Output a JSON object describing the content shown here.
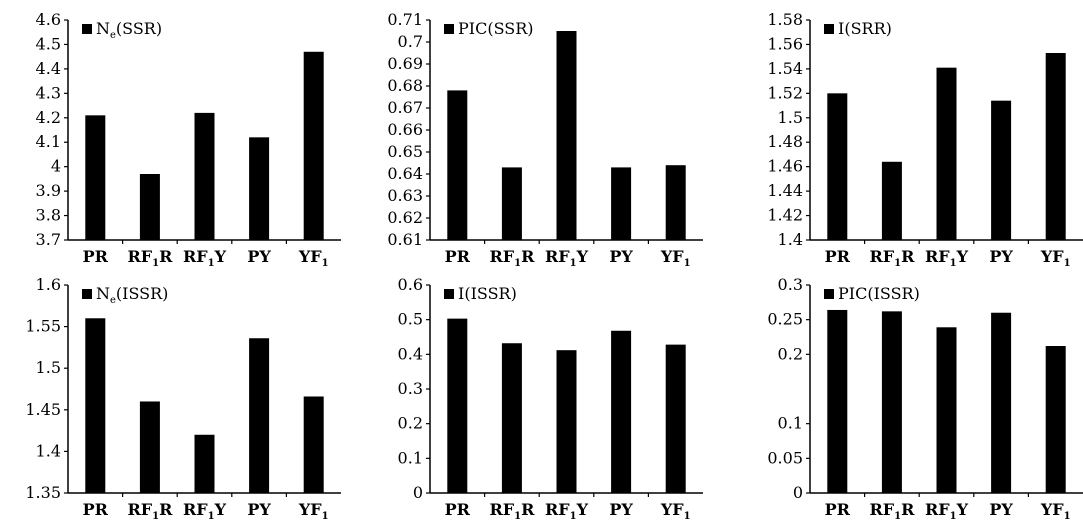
{
  "chart_data": [
    {
      "type": "bar",
      "categories": [
        [
          "PR",
          ""
        ],
        [
          "RF",
          "1",
          "R"
        ],
        [
          "RF",
          "1",
          "Y"
        ],
        [
          "PY",
          ""
        ],
        [
          "YF",
          "1",
          ""
        ]
      ],
      "values": [
        4.21,
        3.97,
        4.22,
        4.12,
        4.47
      ],
      "legend": {
        "main": "N",
        "sub": "e",
        "suffix": "(SSR)"
      },
      "ylim": [
        3.7,
        4.6
      ],
      "yticks": [
        "3.7",
        "3.8",
        "3.9",
        "4",
        "4.1",
        "4.2",
        "4.3",
        "4.4",
        "4.5",
        "4.6"
      ]
    },
    {
      "type": "bar",
      "categories": [
        [
          "PR",
          ""
        ],
        [
          "RF",
          "1",
          "R"
        ],
        [
          "RF",
          "1",
          "Y"
        ],
        [
          "PY",
          ""
        ],
        [
          "YF",
          "1",
          ""
        ]
      ],
      "values": [
        0.678,
        0.643,
        0.705,
        0.643,
        0.644
      ],
      "legend": {
        "main": "PIC(SSR)",
        "sub": "",
        "suffix": ""
      },
      "ylim": [
        0.61,
        0.71
      ],
      "yticks": [
        "0.61",
        "0.62",
        "0.63",
        "0.64",
        "0.65",
        "0.66",
        "0.67",
        "0.68",
        "0.69",
        "0.7",
        "0.71"
      ]
    },
    {
      "type": "bar",
      "categories": [
        [
          "PR",
          ""
        ],
        [
          "RF",
          "1",
          "R"
        ],
        [
          "RF",
          "1",
          "Y"
        ],
        [
          "PY",
          ""
        ],
        [
          "YF",
          "1",
          ""
        ]
      ],
      "values": [
        1.52,
        1.464,
        1.541,
        1.514,
        1.553
      ],
      "legend": {
        "main": "I(SRR)",
        "sub": "",
        "suffix": ""
      },
      "ylim": [
        1.4,
        1.58
      ],
      "yticks": [
        "1.4",
        "1.42",
        "1.44",
        "1.46",
        "1.48",
        "1.5",
        "1.52",
        "1.54",
        "1.56",
        "1.58"
      ]
    },
    {
      "type": "bar",
      "categories": [
        [
          "PR",
          ""
        ],
        [
          "RF",
          "1",
          "R"
        ],
        [
          "RF",
          "1",
          "Y"
        ],
        [
          "PY",
          ""
        ],
        [
          "YF",
          "1",
          ""
        ]
      ],
      "values": [
        1.56,
        1.46,
        1.42,
        1.536,
        1.466
      ],
      "legend": {
        "main": "N",
        "sub": "e",
        "suffix": "(ISSR)"
      },
      "ylim": [
        1.35,
        1.6
      ],
      "yticks": [
        "1.35",
        "1.4",
        "1.45",
        "1.5",
        "1.55",
        "1.6"
      ]
    },
    {
      "type": "bar",
      "categories": [
        [
          "PR",
          ""
        ],
        [
          "RF",
          "1",
          "R"
        ],
        [
          "RF",
          "1",
          "Y"
        ],
        [
          "PY",
          ""
        ],
        [
          "YF",
          "1",
          ""
        ]
      ],
      "values": [
        0.503,
        0.432,
        0.412,
        0.468,
        0.428
      ],
      "legend": {
        "main": "I(ISSR)",
        "sub": "",
        "suffix": ""
      },
      "ylim": [
        0,
        0.6
      ],
      "yticks": [
        "0",
        "0.1",
        "0.2",
        "0.3",
        "0.4",
        "0.5",
        "0.6"
      ]
    },
    {
      "type": "bar",
      "categories": [
        [
          "PR",
          ""
        ],
        [
          "RF",
          "1",
          "R"
        ],
        [
          "RF",
          "1",
          "Y"
        ],
        [
          "PY",
          ""
        ],
        [
          "YF",
          "1",
          ""
        ]
      ],
      "values": [
        0.264,
        0.262,
        0.239,
        0.26,
        0.212
      ],
      "legend": {
        "main": "PIC(ISSR)",
        "sub": "",
        "suffix": ""
      },
      "ylim": [
        0,
        0.3
      ],
      "yticks": [
        "0",
        "0.05",
        "0.1",
        "0.2",
        "0.25",
        "0.3"
      ]
    }
  ]
}
